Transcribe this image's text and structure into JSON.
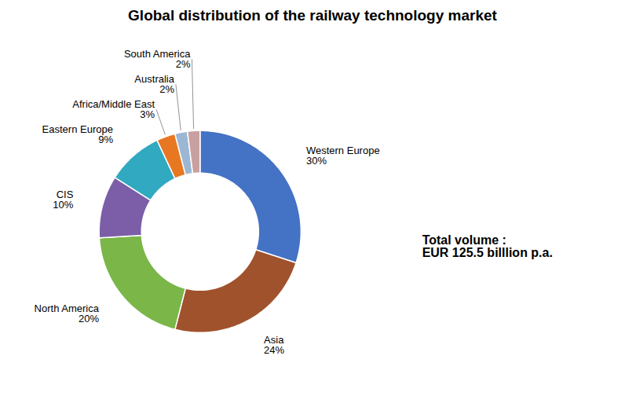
{
  "chart_data": {
    "type": "donut",
    "title": "Global distribution of the railway technology market",
    "categories": [
      "Western Europe",
      "Asia",
      "North America",
      "CIS",
      "Eastern Europe",
      "Africa/Middle East",
      "Australia",
      "South America"
    ],
    "values": [
      30,
      24,
      20,
      10,
      9,
      3,
      2,
      2
    ],
    "value_labels": [
      "30%",
      "24%",
      "20%",
      "10%",
      "9%",
      "3%",
      "2%",
      "2%"
    ],
    "colors": [
      "#4472C4",
      "#A0522D",
      "#7AB648",
      "#7B5EA7",
      "#31A9C1",
      "#E87722",
      "#9BB7D4",
      "#C9A0A0"
    ],
    "data_labels": true,
    "annotations": [
      "Total volume :",
      "EUR 125.5 billlion p.a."
    ]
  }
}
